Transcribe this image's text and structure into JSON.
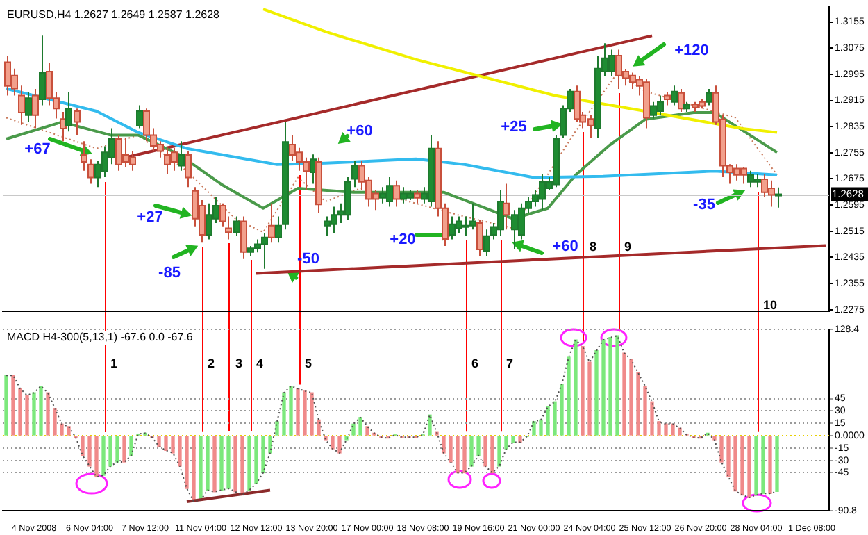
{
  "chart_data": [
    {
      "type": "candlestick",
      "title": "EURUSD,H4 1.2627 1.2649 1.2587 1.2628",
      "ohlc": [
        [
          1.3032,
          1.3052,
          1.293,
          1.2959
        ],
        [
          1.2991,
          1.3012,
          1.293,
          1.2951
        ],
        [
          1.293,
          1.296,
          1.284,
          1.2878
        ],
        [
          1.287,
          1.294,
          1.285,
          1.2922
        ],
        [
          1.293,
          1.295,
          1.283,
          1.287
        ],
        [
          1.2918,
          1.3113,
          1.29,
          1.2999
        ],
        [
          1.3003,
          1.303,
          1.29,
          1.2922
        ],
        [
          1.2922,
          1.294,
          1.286,
          1.289
        ],
        [
          1.2858,
          1.288,
          1.279,
          1.2829
        ],
        [
          1.2838,
          1.294,
          1.282,
          1.289
        ],
        [
          1.2882,
          1.289,
          1.281,
          1.2849
        ],
        [
          1.2748,
          1.279,
          1.27,
          1.2727
        ],
        [
          1.2719,
          1.2735,
          1.266,
          1.2679
        ],
        [
          1.2679,
          1.273,
          1.265,
          1.2719
        ],
        [
          1.2699,
          1.2775,
          1.268,
          1.2756
        ],
        [
          1.274,
          1.283,
          1.272,
          1.2797
        ],
        [
          1.2797,
          1.281,
          1.27,
          1.2719
        ],
        [
          1.2748,
          1.28,
          1.271,
          1.2727
        ],
        [
          1.274,
          1.276,
          1.27,
          1.2719
        ],
        [
          1.2838,
          1.29,
          1.283,
          1.2882
        ],
        [
          1.2882,
          1.289,
          1.279,
          1.2809
        ],
        [
          1.2809,
          1.283,
          1.276,
          1.2776
        ],
        [
          1.278,
          1.279,
          1.274,
          1.276
        ],
        [
          1.2748,
          1.277,
          1.269,
          1.2719
        ],
        [
          1.2756,
          1.277,
          1.27,
          1.2727
        ],
        [
          1.2715,
          1.279,
          1.27,
          1.2748
        ],
        [
          1.2748,
          1.276,
          1.265,
          1.2679
        ],
        [
          1.2638,
          1.265,
          1.253,
          1.2553
        ],
        [
          1.2593,
          1.261,
          1.248,
          1.2504
        ],
        [
          1.2504,
          1.26,
          1.249,
          1.2565
        ],
        [
          1.2553,
          1.262,
          1.254,
          1.2593
        ],
        [
          1.2593,
          1.26,
          1.253,
          1.2545
        ],
        [
          1.2524,
          1.256,
          1.249,
          1.2512
        ],
        [
          1.2512,
          1.256,
          1.25,
          1.2545
        ],
        [
          1.2545,
          1.256,
          1.243,
          1.2451
        ],
        [
          1.2451,
          1.247,
          1.244,
          1.2463
        ],
        [
          1.2463,
          1.249,
          1.245,
          1.2475
        ],
        [
          1.2475,
          1.251,
          1.24,
          1.2496
        ],
        [
          1.2532,
          1.26,
          1.248,
          1.2496
        ],
        [
          1.2496,
          1.256,
          1.248,
          1.2532
        ],
        [
          1.2536,
          1.2849,
          1.252,
          1.2788
        ],
        [
          1.278,
          1.281,
          1.273,
          1.2748
        ],
        [
          1.2756,
          1.277,
          1.27,
          1.2727
        ],
        [
          1.2727,
          1.274,
          1.264,
          1.2699
        ],
        [
          1.2695,
          1.275,
          1.266,
          1.2735
        ],
        [
          1.2727,
          1.274,
          1.257,
          1.2597
        ],
        [
          1.2532,
          1.256,
          1.25,
          1.2545
        ],
        [
          1.2536,
          1.259,
          1.251,
          1.2565
        ],
        [
          1.2565,
          1.26,
          1.254,
          1.2577
        ],
        [
          1.2565,
          1.268,
          1.255,
          1.2666
        ],
        [
          1.2675,
          1.273,
          1.265,
          1.2715
        ],
        [
          1.2715,
          1.273,
          1.264,
          1.2666
        ],
        [
          1.267,
          1.268,
          1.259,
          1.2613
        ],
        [
          1.263,
          1.264,
          1.258,
          1.2613
        ],
        [
          1.2617,
          1.265,
          1.26,
          1.263
        ],
        [
          1.2606,
          1.268,
          1.259,
          1.2654
        ],
        [
          1.2654,
          1.267,
          1.259,
          1.2613
        ],
        [
          1.2613,
          1.265,
          1.26,
          1.263
        ],
        [
          1.2617,
          1.264,
          1.261,
          1.263
        ],
        [
          1.263,
          1.264,
          1.26,
          1.2617
        ],
        [
          1.2613,
          1.265,
          1.26,
          1.263
        ],
        [
          1.2606,
          1.281,
          1.259,
          1.2768
        ],
        [
          1.2768,
          1.279,
          1.256,
          1.2585
        ],
        [
          1.2585,
          1.26,
          1.247,
          1.2491
        ],
        [
          1.2504,
          1.256,
          1.249,
          1.2536
        ],
        [
          1.2524,
          1.256,
          1.251,
          1.2545
        ],
        [
          1.2528,
          1.256,
          1.25,
          1.2532
        ],
        [
          1.2532,
          1.26,
          1.252,
          1.2545
        ],
        [
          1.254,
          1.255,
          1.244,
          1.2459
        ],
        [
          1.2455,
          1.252,
          1.244,
          1.25
        ],
        [
          1.2504,
          1.254,
          1.249,
          1.2528
        ],
        [
          1.252,
          1.264,
          1.25,
          1.2606
        ],
        [
          1.26,
          1.266,
          1.252,
          1.2565
        ],
        [
          1.252,
          1.258,
          1.246,
          1.2565
        ],
        [
          1.2504,
          1.26,
          1.249,
          1.2585
        ],
        [
          1.2585,
          1.262,
          1.257,
          1.2606
        ],
        [
          1.2606,
          1.264,
          1.259,
          1.2626
        ],
        [
          1.2613,
          1.269,
          1.258,
          1.2666
        ],
        [
          1.2646,
          1.268,
          1.264,
          1.2666
        ],
        [
          1.2658,
          1.281,
          1.265,
          1.2797
        ],
        [
          1.2809,
          1.29,
          1.28,
          1.289
        ],
        [
          1.289,
          1.295,
          1.288,
          1.2942
        ],
        [
          1.2942,
          1.296,
          1.285,
          1.2858
        ],
        [
          1.287,
          1.288,
          1.283,
          1.2849
        ],
        [
          1.2858,
          1.287,
          1.28,
          1.2838
        ],
        [
          1.2829,
          1.305,
          1.28,
          1.3012
        ],
        [
          1.3003,
          1.309,
          1.299,
          1.3044
        ],
        [
          1.3003,
          1.307,
          1.299,
          1.3052
        ],
        [
          1.3052,
          1.307,
          1.295,
          1.2991
        ],
        [
          1.3003,
          1.301,
          1.296,
          1.2983
        ],
        [
          1.2991,
          1.3,
          1.295,
          1.2971
        ],
        [
          1.2979,
          1.299,
          1.293,
          1.2959
        ],
        [
          1.2971,
          1.298,
          1.283,
          1.2862
        ],
        [
          1.287,
          1.291,
          1.286,
          1.2898
        ],
        [
          1.2882,
          1.293,
          1.287,
          1.291
        ],
        [
          1.293,
          1.294,
          1.29,
          1.2918
        ],
        [
          1.291,
          1.296,
          1.29,
          1.2942
        ],
        [
          1.2938,
          1.295,
          1.288,
          1.289
        ],
        [
          1.289,
          1.291,
          1.288,
          1.2902
        ],
        [
          1.2902,
          1.291,
          1.288,
          1.2894
        ],
        [
          1.291,
          1.292,
          1.289,
          1.2898
        ],
        [
          1.291,
          1.295,
          1.29,
          1.2938
        ],
        [
          1.2938,
          1.296,
          1.284,
          1.2849
        ],
        [
          1.2857,
          1.287,
          1.268,
          1.2715
        ],
        [
          1.2715,
          1.272,
          1.266,
          1.2695
        ],
        [
          1.2707,
          1.272,
          1.267,
          1.2687
        ],
        [
          1.2707,
          1.271,
          1.266,
          1.2687
        ],
        [
          1.2666,
          1.27,
          1.265,
          1.2687
        ],
        [
          1.2666,
          1.269,
          1.265,
          1.2674
        ],
        [
          1.2674,
          1.269,
          1.262,
          1.2634
        ],
        [
          1.2646,
          1.267,
          1.259,
          1.2626
        ],
        [
          1.2627,
          1.2649,
          1.2587,
          1.2628
        ],
        null,
        null,
        null,
        null,
        null,
        null,
        null
      ],
      "series": [
        {
          "type": "line",
          "color": "#f0f000",
          "values": [
            null,
            null,
            null,
            null,
            null,
            null,
            null,
            null,
            null,
            null,
            null,
            null,
            null,
            null,
            null,
            null,
            null,
            null,
            null,
            null,
            null,
            null,
            null,
            null,
            null,
            null,
            null,
            null,
            null,
            null,
            null,
            null,
            null,
            null,
            null,
            null,
            null,
            1.3194,
            null,
            null,
            null,
            null,
            null,
            null,
            null,
            null,
            1.3125,
            null,
            null,
            null,
            null,
            null,
            null,
            null,
            null,
            null,
            null,
            null,
            null,
            1.304,
            null,
            null,
            null,
            null,
            null,
            null,
            null,
            null,
            null,
            null,
            null,
            null,
            null,
            null,
            null,
            null,
            null,
            null,
            null,
            1.293,
            null,
            null,
            null,
            null,
            null,
            null,
            null,
            null,
            null,
            null,
            null,
            null,
            1.2882,
            null,
            null,
            null,
            null,
            null,
            null,
            null,
            null,
            null,
            null,
            null,
            null,
            null,
            1.2829,
            null,
            null,
            null,
            null,
            1.2817,
            null,
            null,
            null,
            null,
            null,
            null,
            null
          ]
        },
        {
          "type": "line",
          "color": "#33bbee",
          "values": [
            1.2951,
            null,
            null,
            null,
            null,
            null,
            null,
            null,
            null,
            null,
            null,
            null,
            null,
            1.2882,
            null,
            null,
            null,
            null,
            null,
            1.2817,
            null,
            null,
            null,
            null,
            null,
            null,
            1.2768,
            null,
            null,
            null,
            null,
            null,
            null,
            null,
            null,
            null,
            null,
            null,
            null,
            1.2719,
            null,
            null,
            null,
            null,
            null,
            null,
            1.2723,
            null,
            null,
            null,
            null,
            null,
            null,
            null,
            null,
            null,
            null,
            null,
            null,
            1.2736,
            null,
            null,
            null,
            null,
            null,
            null,
            1.2719,
            null,
            null,
            null,
            null,
            null,
            null,
            null,
            null,
            null,
            1.2679,
            null,
            null,
            null,
            null,
            null,
            null,
            null,
            null,
            null,
            1.2683,
            null,
            null,
            null,
            null,
            null,
            null,
            null,
            null,
            null,
            null,
            null,
            null,
            null,
            null,
            null,
            1.2699,
            null,
            null,
            null,
            null,
            null,
            null,
            null,
            null,
            1.2687,
            null,
            null,
            null,
            null,
            null,
            null,
            null
          ]
        },
        {
          "type": "line",
          "color": "#4a9a4a",
          "values": [
            1.2797,
            null,
            null,
            null,
            null,
            null,
            null,
            null,
            1.2849,
            null,
            null,
            null,
            null,
            null,
            null,
            1.2809,
            null,
            null,
            null,
            1.2809,
            null,
            null,
            null,
            null,
            null,
            1.2748,
            null,
            null,
            null,
            null,
            null,
            1.2658,
            null,
            null,
            null,
            null,
            null,
            1.2585,
            null,
            null,
            null,
            null,
            1.2646,
            null,
            null,
            null,
            null,
            null,
            null,
            null,
            1.2634,
            null,
            null,
            null,
            null,
            null,
            null,
            null,
            null,
            null,
            null,
            null,
            null,
            1.2634,
            null,
            null,
            null,
            null,
            null,
            null,
            null,
            null,
            null,
            1.2553,
            null,
            null,
            null,
            null,
            1.2585,
            null,
            null,
            null,
            1.2687,
            null,
            null,
            null,
            null,
            1.278,
            null,
            null,
            null,
            null,
            1.2857,
            null,
            null,
            null,
            null,
            null,
            null,
            1.2878,
            null,
            null,
            1.2878,
            null,
            null,
            null,
            null,
            null,
            null,
            null,
            null,
            1.2756,
            null,
            null,
            null,
            null,
            null,
            null,
            null
          ]
        },
        {
          "type": "line",
          "color": "#c8785a",
          "line_style": "dotted",
          "values": [
            1.2862,
            null,
            null,
            null,
            null,
            null,
            null,
            null,
            null,
            null,
            null,
            null,
            null,
            1.2768,
            null,
            null,
            null,
            null,
            null,
            1.2809,
            null,
            null,
            null,
            null,
            null,
            null,
            1.2699,
            null,
            null,
            null,
            null,
            null,
            null,
            1.2553,
            null,
            null,
            null,
            1.2512,
            null,
            null,
            null,
            null,
            1.2679,
            null,
            null,
            null,
            1.2606,
            null,
            null,
            null,
            null,
            1.2646,
            null,
            null,
            null,
            null,
            null,
            null,
            null,
            null,
            null,
            null,
            null,
            null,
            null,
            1.2565,
            null,
            null,
            null,
            null,
            null,
            null,
            null,
            1.2524,
            null,
            null,
            null,
            null,
            null,
            null,
            null,
            null,
            1.2821,
            null,
            null,
            null,
            null,
            null,
            1.2999,
            null,
            null,
            null,
            1.2943,
            null,
            null,
            null,
            null,
            null,
            null,
            null,
            null,
            null,
            null,
            null,
            null,
            1.2862,
            null,
            null,
            null,
            null,
            null,
            1.2687,
            null,
            null,
            null,
            null,
            null,
            null,
            null
          ]
        },
        {
          "type": "line",
          "color": "#a52a2a",
          "values": [
            null,
            null,
            null,
            null,
            null,
            null,
            null,
            null,
            null,
            null,
            null,
            null,
            null,
            null,
            null,
            null,
            1.2735,
            null,
            null,
            null,
            null,
            null,
            null,
            null,
            null,
            null,
            null,
            null,
            null,
            null,
            null,
            null,
            null,
            null,
            null,
            null,
            null,
            null,
            null,
            null,
            null,
            null,
            null,
            null,
            null,
            null,
            null,
            null,
            null,
            null,
            null,
            null,
            null,
            null,
            null,
            null,
            null,
            null,
            null,
            null,
            null,
            null,
            null,
            null,
            null,
            null,
            null,
            null,
            null,
            null,
            null,
            null,
            null,
            null,
            null,
            null,
            null,
            null,
            null,
            null,
            null,
            null,
            null,
            null,
            null,
            null,
            null,
            null,
            null,
            null,
            null,
            null,
            null,
            1.3113,
            null,
            null,
            null,
            null,
            null,
            null,
            null,
            null,
            null,
            null,
            null,
            null,
            null,
            null,
            null,
            null,
            null,
            null,
            null,
            null,
            null,
            null,
            null,
            null,
            null
          ]
        },
        {
          "type": "line",
          "color": "#a52a2a",
          "values": [
            null,
            null,
            null,
            null,
            null,
            null,
            null,
            null,
            null,
            null,
            null,
            null,
            null,
            null,
            null,
            null,
            null,
            null,
            null,
            null,
            null,
            null,
            null,
            null,
            null,
            null,
            null,
            null,
            null,
            null,
            null,
            null,
            null,
            null,
            null,
            null,
            1.2386,
            null,
            null,
            null,
            null,
            null,
            null,
            null,
            null,
            null,
            null,
            null,
            null,
            null,
            null,
            null,
            null,
            null,
            null,
            null,
            null,
            null,
            null,
            null,
            null,
            null,
            null,
            null,
            null,
            null,
            null,
            null,
            null,
            null,
            null,
            null,
            null,
            null,
            null,
            null,
            null,
            null,
            null,
            null,
            null,
            null,
            null,
            null,
            null,
            null,
            null,
            null,
            null,
            null,
            null,
            null,
            null,
            null,
            null,
            null,
            null,
            null,
            null,
            null,
            null,
            null,
            null,
            null,
            null,
            null,
            null,
            null,
            null,
            null,
            null,
            null,
            null,
            null,
            null,
            null,
            null,
            null,
            1.2471
          ]
        }
      ],
      "ylim": [
        1.227,
        1.32
      ],
      "yticks": [
        1.3155,
        1.3075,
        1.2995,
        1.2915,
        1.2835,
        1.2755,
        1.2675,
        1.2595,
        1.2515,
        1.2435,
        1.2355,
        1.2275
      ],
      "tick_labels": "y",
      "ref_lines": [
        {
          "axis": "y",
          "value": 1.2628,
          "label": "1.2628",
          "color": "#c8c8c8"
        }
      ],
      "annotations": [
        "+67",
        "+27",
        "-85",
        "-50",
        "+60",
        "+20",
        "+60",
        "+25",
        "+120",
        "-35",
        "8",
        "9",
        "10"
      ]
    },
    {
      "type": "bar",
      "title": "MACD H4-300(5,13,1) -67.6 0.0 -67.6",
      "categories": [
        null,
        null,
        null,
        null,
        "4 Nov 2008",
        null,
        null,
        null,
        null,
        null,
        null,
        null,
        "6 Nov 04:00",
        null,
        null,
        null,
        null,
        null,
        null,
        null,
        "7 Nov 12:00",
        null,
        null,
        null,
        null,
        null,
        null,
        null,
        "11 Nov 04:00",
        null,
        null,
        null,
        null,
        null,
        null,
        null,
        "12 Nov 12:00",
        null,
        null,
        null,
        null,
        null,
        null,
        null,
        "13 Nov 20:00",
        null,
        null,
        null,
        null,
        null,
        null,
        null,
        "17 Nov 00:00",
        null,
        null,
        null,
        null,
        null,
        null,
        null,
        "18 Nov 08:00",
        null,
        null,
        null,
        null,
        null,
        null,
        null,
        "19 Nov 16:00",
        null,
        null,
        null,
        null,
        null,
        null,
        null,
        "21 Nov 00:00",
        null,
        null,
        null,
        null,
        null,
        null,
        null,
        "24 Nov 04:00",
        null,
        null,
        null,
        null,
        null,
        null,
        null,
        "25 Nov 12:00",
        null,
        null,
        null,
        null,
        null,
        null,
        null,
        "26 Nov 20:00",
        null,
        null,
        null,
        null,
        null,
        null,
        null,
        "28 Nov 04:00",
        null,
        null,
        null,
        null,
        null,
        null,
        null,
        "1 Dec 08:00",
        null,
        null
      ],
      "series": [
        {
          "type": "bar",
          "values": [
            73,
            73,
            57,
            49,
            52,
            60,
            52,
            33,
            14,
            11,
            -2,
            -24,
            -37,
            -50,
            -48,
            -37,
            -32,
            -32,
            -24,
            2,
            3,
            -2,
            -13,
            -18,
            -21,
            -37,
            -64,
            -80,
            -78,
            -66,
            -68,
            -66,
            -64,
            -68,
            -72,
            -66,
            -58,
            -45,
            -21,
            17,
            52,
            60,
            57,
            54,
            52,
            19,
            -5,
            -16,
            -21,
            -5,
            14,
            22,
            11,
            3,
            -2,
            -3,
            1,
            -2,
            -2,
            -2,
            1,
            25,
            4,
            -21,
            -32,
            -45,
            -45,
            -37,
            -24,
            -37,
            -45,
            -37,
            -16,
            -8,
            -8,
            -1,
            17,
            19,
            35,
            41,
            62,
            95,
            116,
            108,
            89,
            103,
            116,
            119,
            121,
            100,
            92,
            76,
            60,
            41,
            17,
            14,
            14,
            9,
            1,
            -2,
            -3,
            3,
            -5,
            -32,
            -50,
            -67,
            -72,
            -75,
            -72,
            -70,
            -70,
            -67.6,
            null,
            null,
            null,
            null,
            null,
            null,
            null
          ],
          "colors": [
            "#7ce87c",
            "#f08a8a",
            "#f08a8a",
            "#f08a8a",
            "#7ce87c",
            "#7ce87c",
            "#f08a8a",
            "#f08a8a",
            "#f08a8a",
            "#f08a8a",
            "#f08a8a",
            "#f08a8a",
            "#f08a8a",
            "#f08a8a",
            "#7ce87c",
            "#7ce87c",
            "#7ce87c",
            "#f08a8a",
            "#7ce87c",
            "#7ce87c",
            "#7ce87c",
            "#f08a8a",
            "#f08a8a",
            "#f08a8a",
            "#f08a8a",
            "#f08a8a",
            "#f08a8a",
            "#f08a8a",
            "#7ce87c",
            "#7ce87c",
            "#f08a8a",
            "#7ce87c",
            "#7ce87c",
            "#f08a8a",
            "#f08a8a",
            "#7ce87c",
            "#7ce87c",
            "#7ce87c",
            "#7ce87c",
            "#7ce87c",
            "#7ce87c",
            "#7ce87c",
            "#f08a8a",
            "#f08a8a",
            "#f08a8a",
            "#f08a8a",
            "#f08a8a",
            "#f08a8a",
            "#f08a8a",
            "#7ce87c",
            "#7ce87c",
            "#7ce87c",
            "#f08a8a",
            "#f08a8a",
            "#f08a8a",
            "#f08a8a",
            "#7ce87c",
            "#f08a8a",
            "#f08a8a",
            "#f08a8a",
            "#7ce87c",
            "#7ce87c",
            "#f08a8a",
            "#f08a8a",
            "#f08a8a",
            "#f08a8a",
            "#f08a8a",
            "#7ce87c",
            "#7ce87c",
            "#f08a8a",
            "#f08a8a",
            "#7ce87c",
            "#7ce87c",
            "#7ce87c",
            "#f08a8a",
            "#7ce87c",
            "#7ce87c",
            "#7ce87c",
            "#7ce87c",
            "#7ce87c",
            "#7ce87c",
            "#7ce87c",
            "#7ce87c",
            "#f08a8a",
            "#f08a8a",
            "#7ce87c",
            "#7ce87c",
            "#7ce87c",
            "#7ce87c",
            "#f08a8a",
            "#f08a8a",
            "#f08a8a",
            "#f08a8a",
            "#f08a8a",
            "#f08a8a",
            "#f08a8a",
            "#f08a8a",
            "#f08a8a",
            "#f08a8a",
            "#f08a8a",
            "#f08a8a",
            "#7ce87c",
            "#f08a8a",
            "#f08a8a",
            "#f08a8a",
            "#f08a8a",
            "#f08a8a",
            "#f08a8a",
            "#7ce87c",
            "#7ce87c",
            "#f08a8a",
            "#7ce87c",
            null,
            null,
            null,
            null,
            null,
            null,
            null
          ]
        },
        {
          "type": "line",
          "color": "#505050",
          "line_style": "dotted",
          "values": [
            73,
            73,
            57,
            49,
            52,
            60,
            52,
            33,
            14,
            11,
            -2,
            -24,
            -37,
            -50,
            -48,
            -37,
            -32,
            -32,
            -24,
            2,
            3,
            -2,
            -13,
            -18,
            -21,
            -37,
            -64,
            -80,
            -78,
            -66,
            -68,
            -66,
            -64,
            -68,
            -72,
            -66,
            -58,
            -45,
            -21,
            17,
            52,
            60,
            57,
            54,
            52,
            19,
            -5,
            -16,
            -21,
            -5,
            14,
            22,
            11,
            3,
            -2,
            -3,
            1,
            -2,
            -2,
            -2,
            1,
            25,
            4,
            -21,
            -32,
            -45,
            -45,
            -37,
            -24,
            -37,
            -45,
            -37,
            -16,
            -8,
            -8,
            -1,
            17,
            19,
            35,
            41,
            62,
            95,
            116,
            108,
            89,
            103,
            116,
            119,
            121,
            100,
            92,
            76,
            60,
            41,
            17,
            14,
            14,
            9,
            1,
            -2,
            -3,
            3,
            -5,
            -32,
            -50,
            -67,
            -72,
            -75,
            -72,
            -70,
            -70,
            -67.6,
            null,
            null,
            null,
            null,
            null,
            null,
            null
          ]
        },
        {
          "type": "line",
          "color": "#8b2a2a",
          "values": [
            null,
            null,
            null,
            null,
            null,
            null,
            null,
            null,
            null,
            null,
            null,
            null,
            null,
            null,
            null,
            null,
            null,
            null,
            null,
            null,
            null,
            null,
            null,
            null,
            null,
            null,
            -80,
            null,
            null,
            null,
            null,
            null,
            null,
            null,
            null,
            null,
            null,
            null,
            -66,
            null,
            null,
            null,
            null,
            null,
            null,
            null,
            null,
            null,
            null,
            null,
            null,
            null,
            null,
            null,
            null,
            null,
            null,
            null,
            null,
            null,
            null,
            null,
            null,
            null,
            null,
            null,
            null,
            null,
            null,
            null,
            null,
            null,
            null,
            null,
            null,
            null,
            null,
            null,
            null,
            null,
            null,
            null,
            null,
            null,
            null,
            null,
            null,
            null,
            null,
            null,
            null,
            null,
            null,
            null,
            null,
            null,
            null,
            null,
            null,
            null,
            null,
            null,
            null,
            null,
            null,
            null,
            null,
            null,
            null,
            null,
            null,
            null,
            null,
            null,
            null,
            null,
            null,
            null,
            null
          ]
        }
      ],
      "ylim": [
        -90.8,
        128.4
      ],
      "yticks": [
        128.4,
        45,
        30,
        15,
        {
          "value": 0,
          "label": "0.0000"
        },
        -15,
        -30,
        -45,
        -90.8
      ],
      "grid": "y",
      "ref_lines": [
        {
          "axis": "y",
          "value": 0,
          "color": "#e8d000",
          "line_style": "dotted"
        }
      ],
      "annotations": [
        "1",
        "2",
        "3",
        "4",
        "5",
        "6",
        "7"
      ]
    }
  ]
}
